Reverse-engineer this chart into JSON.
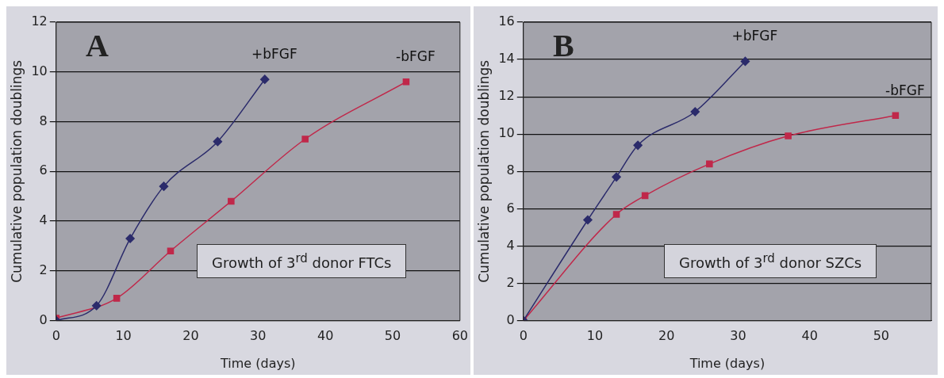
{
  "chart_data": [
    {
      "type": "line",
      "xlabel": "Time (days)",
      "ylabel": "Cumulative population doublings",
      "xlim": [
        0,
        60
      ],
      "xticks": [
        0,
        10,
        20,
        30,
        40,
        50,
        60
      ],
      "ylim": [
        0,
        12
      ],
      "yticks": [
        0,
        2,
        4,
        6,
        8,
        10,
        12
      ],
      "grid": "y",
      "legend": false,
      "annotations": [
        "A",
        "Growth of 3$^{rd}$ donor FTCs"
      ],
      "series": [
        {
          "name": "+bFGF",
          "color": "#2b2b6b",
          "marker": "diamond",
          "x": [
            0,
            6,
            11,
            16,
            24,
            31
          ],
          "values": [
            0,
            0.6,
            3.3,
            5.4,
            7.2,
            9.7
          ]
        },
        {
          "name": "-bFGF",
          "color": "#c0284a",
          "marker": "square",
          "x": [
            0,
            9,
            17,
            26,
            37,
            52
          ],
          "values": [
            0.1,
            0.9,
            2.8,
            4.8,
            7.3,
            9.6
          ]
        }
      ]
    },
    {
      "type": "line",
      "xlabel": "Time (days)",
      "ylabel": "Cumulative population doublings",
      "xlim": [
        0,
        57
      ],
      "xticks": [
        0,
        10,
        20,
        30,
        40,
        50
      ],
      "ylim": [
        0,
        16
      ],
      "yticks": [
        0,
        2,
        4,
        6,
        8,
        10,
        12,
        14,
        16
      ],
      "grid": "y",
      "legend": false,
      "annotations": [
        "B",
        "Growth of 3$^{rd}$ donor SZCs"
      ],
      "series": [
        {
          "name": "+bFGF",
          "color": "#2b2b6b",
          "marker": "diamond",
          "x": [
            0,
            9,
            13,
            16,
            24,
            31
          ],
          "values": [
            0,
            5.4,
            7.7,
            9.4,
            11.2,
            13.9
          ]
        },
        {
          "name": "-bFGF",
          "color": "#c0284a",
          "marker": "square",
          "x": [
            0,
            13,
            17,
            26,
            37,
            52
          ],
          "values": [
            0,
            5.7,
            6.7,
            8.4,
            9.9,
            11
          ]
        }
      ]
    }
  ]
}
